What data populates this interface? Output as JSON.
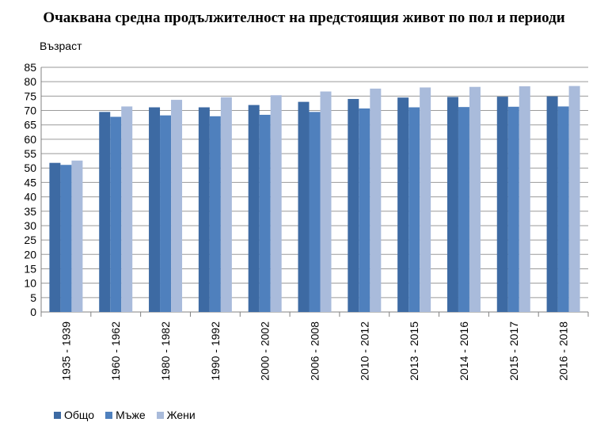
{
  "chart_data": {
    "type": "bar",
    "title": "Очаквана средна продължителност на предстоящия живот по пол и периоди",
    "ylabel": "Възраст",
    "xlabel": "",
    "ylim": [
      0,
      85
    ],
    "yticks": [
      0,
      5,
      10,
      15,
      20,
      25,
      30,
      35,
      40,
      45,
      50,
      55,
      60,
      65,
      70,
      75,
      80,
      85
    ],
    "grid": true,
    "legend_position": "bottom-left",
    "categories": [
      "1935 - 1939",
      "1960 - 1962",
      "1980 - 1982",
      "1990 - 1992",
      "2000 - 2002",
      "2006 - 2008",
      "2010 - 2012",
      "2013 - 2015",
      "2014 - 2016",
      "2015 - 2017",
      "2016 - 2018"
    ],
    "series": [
      {
        "name": "Общо",
        "color": "#3d6aa3",
        "values": [
          51.8,
          69.5,
          71.1,
          71.1,
          71.9,
          73.0,
          74.0,
          74.5,
          74.7,
          74.8,
          74.9
        ]
      },
      {
        "name": "Мъже",
        "color": "#4f80bd",
        "values": [
          51.1,
          67.8,
          68.3,
          68.0,
          68.5,
          69.5,
          70.7,
          71.1,
          71.2,
          71.3,
          71.4
        ]
      },
      {
        "name": "Жени",
        "color": "#a9bbdb",
        "values": [
          52.6,
          71.4,
          73.7,
          74.6,
          75.3,
          76.6,
          77.6,
          78.0,
          78.2,
          78.4,
          78.5
        ]
      }
    ]
  }
}
